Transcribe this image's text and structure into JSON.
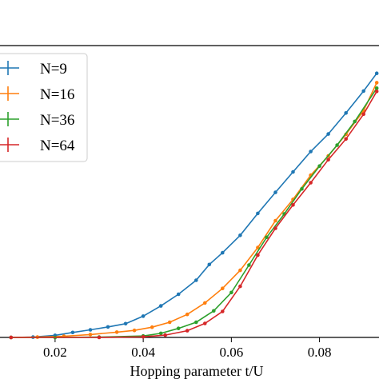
{
  "chart_data": {
    "type": "line",
    "title": "",
    "xlabel": "Hopping parameter t/U",
    "ylabel": "",
    "xlim": [
      0.0075,
      0.0935
    ],
    "ylim": [
      0.0,
      1.0
    ],
    "x_ticks": [
      0.02,
      0.04,
      0.06,
      0.08
    ],
    "x_tick_labels": [
      "0.02",
      "0.04",
      "0.06",
      "0.08"
    ],
    "grid": false,
    "legend_position": "upper-left",
    "series": [
      {
        "name": "N=9",
        "color": "#1f77b4",
        "points": [
          [
            0.01,
            0.0
          ],
          [
            0.015,
            0.001
          ],
          [
            0.02,
            0.007
          ],
          [
            0.024,
            0.017
          ],
          [
            0.028,
            0.026
          ],
          [
            0.032,
            0.036
          ],
          [
            0.036,
            0.047
          ],
          [
            0.04,
            0.073
          ],
          [
            0.044,
            0.108
          ],
          [
            0.048,
            0.148
          ],
          [
            0.052,
            0.196
          ],
          [
            0.055,
            0.25
          ],
          [
            0.058,
            0.29
          ],
          [
            0.062,
            0.35
          ],
          [
            0.066,
            0.425
          ],
          [
            0.07,
            0.497
          ],
          [
            0.074,
            0.567
          ],
          [
            0.078,
            0.637
          ],
          [
            0.082,
            0.697
          ],
          [
            0.086,
            0.769
          ],
          [
            0.09,
            0.844
          ],
          [
            0.093,
            0.905
          ]
        ]
      },
      {
        "name": "N=16",
        "color": "#ff7f0e",
        "points": [
          [
            0.01,
            0.0
          ],
          [
            0.016,
            0.001
          ],
          [
            0.022,
            0.004
          ],
          [
            0.028,
            0.01
          ],
          [
            0.034,
            0.018
          ],
          [
            0.038,
            0.024
          ],
          [
            0.042,
            0.035
          ],
          [
            0.046,
            0.052
          ],
          [
            0.05,
            0.079
          ],
          [
            0.054,
            0.118
          ],
          [
            0.058,
            0.168
          ],
          [
            0.062,
            0.23
          ],
          [
            0.066,
            0.308
          ],
          [
            0.07,
            0.4
          ],
          [
            0.074,
            0.473
          ],
          [
            0.078,
            0.556
          ],
          [
            0.082,
            0.622
          ],
          [
            0.086,
            0.696
          ],
          [
            0.09,
            0.777
          ],
          [
            0.093,
            0.873
          ]
        ]
      },
      {
        "name": "N=36",
        "color": "#2ca02c",
        "points": [
          [
            0.01,
            0.0
          ],
          [
            0.02,
            0.0
          ],
          [
            0.03,
            0.001
          ],
          [
            0.04,
            0.005
          ],
          [
            0.044,
            0.014
          ],
          [
            0.048,
            0.031
          ],
          [
            0.052,
            0.052
          ],
          [
            0.056,
            0.091
          ],
          [
            0.06,
            0.154
          ],
          [
            0.064,
            0.248
          ],
          [
            0.068,
            0.343
          ],
          [
            0.072,
            0.423
          ],
          [
            0.076,
            0.509
          ],
          [
            0.08,
            0.587
          ],
          [
            0.084,
            0.659
          ],
          [
            0.088,
            0.74
          ],
          [
            0.093,
            0.854
          ]
        ]
      },
      {
        "name": "N=64",
        "color": "#d62728",
        "points": [
          [
            0.01,
            0.0
          ],
          [
            0.03,
            0.0
          ],
          [
            0.04,
            0.002
          ],
          [
            0.045,
            0.008
          ],
          [
            0.05,
            0.023
          ],
          [
            0.054,
            0.048
          ],
          [
            0.058,
            0.089
          ],
          [
            0.062,
            0.175
          ],
          [
            0.066,
            0.282
          ],
          [
            0.07,
            0.374
          ],
          [
            0.074,
            0.454
          ],
          [
            0.078,
            0.53
          ],
          [
            0.082,
            0.609
          ],
          [
            0.086,
            0.68
          ],
          [
            0.09,
            0.765
          ],
          [
            0.093,
            0.843
          ]
        ]
      }
    ]
  }
}
